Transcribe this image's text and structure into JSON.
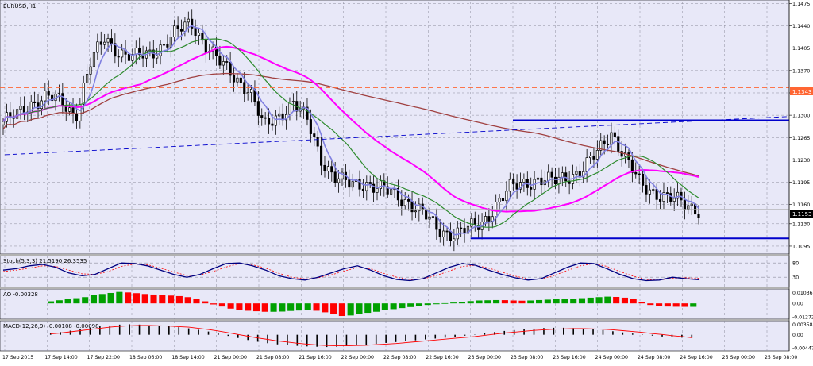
{
  "window": {
    "symbol_title": "EURUSD,H1"
  },
  "colors": {
    "background": "#e8e8f8",
    "grid": "#8c8c9c",
    "candle": "#000000",
    "ma_fast": "#8080e0",
    "ma_green": "#2e8b2e",
    "ma_magenta": "#ff00ff",
    "ma_slow": "#a04040",
    "trendline": "#0000cc",
    "current_price_line": "#aaaaaa",
    "orange_level": "#ff6633",
    "stoch_main": "#000080",
    "stoch_signal": "#ff0000",
    "ao_up": "#00a000",
    "ao_down": "#ff0000",
    "macd_hist": "#000000",
    "macd_signal": "#ff0000"
  },
  "chart_data": [
    {
      "type": "candlestick",
      "symbol": "EURUSD",
      "timeframe": "H1",
      "ylim": [
        1.1085,
        1.1478
      ],
      "y_ticks": [
        1.1475,
        1.144,
        1.1405,
        1.137,
        1.1335,
        1.13,
        1.1265,
        1.123,
        1.1195,
        1.116,
        1.113,
        1.1095
      ],
      "x_tick_labels": [
        "17 Sep 2015",
        "17 Sep 14:00",
        "17 Sep 22:00",
        "18 Sep 06:00",
        "18 Sep 14:00",
        "21 Sep 00:00",
        "21 Sep 08:00",
        "21 Sep 16:00",
        "22 Sep 00:00",
        "22 Sep 08:00",
        "22 Sep 16:00",
        "23 Sep 00:00",
        "23 Sep 08:00",
        "23 Sep 16:00",
        "24 Sep 00:00",
        "24 Sep 08:00",
        "24 Sep 16:00",
        "25 Sep 00:00",
        "25 Sep 08:00"
      ],
      "price_badges": [
        {
          "value": "1.1343",
          "color": "#ff6633"
        },
        {
          "value": "1.1153",
          "color": "#000000"
        }
      ],
      "close_waypoints": [
        1.129,
        1.13,
        1.132,
        1.133,
        1.132,
        1.13,
        1.138,
        1.142,
        1.14,
        1.139,
        1.1395,
        1.141,
        1.143,
        1.1445,
        1.141,
        1.138,
        1.136,
        1.134,
        1.128,
        1.13,
        1.132,
        1.129,
        1.123,
        1.12,
        1.119,
        1.1195,
        1.1185,
        1.1175,
        1.1165,
        1.1145,
        1.112,
        1.1115,
        1.112,
        1.113,
        1.116,
        1.1185,
        1.1195,
        1.12,
        1.1195,
        1.1205,
        1.1215,
        1.124,
        1.1275,
        1.123,
        1.119,
        1.118,
        1.117,
        1.116,
        1.1153
      ],
      "levels": {
        "orange_dashed": 1.1343,
        "current_price": 1.1153,
        "support": 1.1107
      },
      "trendlines": [
        {
          "style": "solid",
          "points": [
            [
              "23 Sep 00:00",
              1.1107
            ],
            [
              "25 Sep 08:00",
              1.1107
            ]
          ]
        },
        {
          "style": "solid",
          "points": [
            [
              "23 Sep 08:00",
              1.1292
            ],
            [
              "25 Sep 08:00",
              1.1292
            ]
          ]
        },
        {
          "style": "dashed",
          "points": [
            [
              "17 Sep 2015",
              1.1238
            ],
            [
              "25 Sep 08:00",
              1.1298
            ]
          ]
        }
      ],
      "grid": true
    },
    {
      "type": "line",
      "indicator": "Stoch",
      "label": "Stoch(5,3,3) 21.5190 26.3535",
      "y_ticks": [
        80,
        30
      ],
      "ylim": [
        0,
        100
      ],
      "main_values": [
        55,
        60,
        70,
        75,
        65,
        45,
        35,
        40,
        60,
        80,
        78,
        70,
        55,
        40,
        30,
        40,
        60,
        78,
        80,
        70,
        55,
        35,
        25,
        20,
        30,
        45,
        60,
        70,
        55,
        35,
        22,
        18,
        25,
        45,
        65,
        78,
        72,
        55,
        40,
        28,
        20,
        25,
        45,
        65,
        80,
        78,
        60,
        40,
        25,
        18,
        20,
        30,
        25,
        21.5
      ],
      "signal_values": [
        50,
        55,
        62,
        70,
        68,
        55,
        42,
        40,
        50,
        68,
        76,
        74,
        62,
        48,
        36,
        38,
        50,
        66,
        78,
        74,
        62,
        44,
        30,
        24,
        28,
        38,
        52,
        64,
        60,
        44,
        30,
        22,
        24,
        36,
        52,
        68,
        72,
        62,
        48,
        34,
        24,
        24,
        36,
        54,
        70,
        78,
        68,
        50,
        34,
        22,
        20,
        26,
        28,
        26.35
      ]
    },
    {
      "type": "bar",
      "indicator": "AO",
      "label": "AO -0.00328",
      "y_ticks": [
        "0.01036",
        "0.00",
        "-0.01272"
      ],
      "ylim": [
        -0.0135,
        0.0115
      ],
      "values": [
        0.002,
        0.003,
        0.004,
        0.005,
        0.006,
        0.008,
        0.009,
        0.01,
        0.011,
        0.0105,
        0.0098,
        0.009,
        0.0085,
        0.008,
        0.0075,
        0.007,
        0.006,
        0.004,
        0.002,
        -0.001,
        -0.003,
        -0.005,
        -0.006,
        -0.007,
        -0.0075,
        -0.008,
        -0.008,
        -0.0078,
        -0.0072,
        -0.0068,
        -0.0065,
        -0.007,
        -0.0085,
        -0.01,
        -0.012,
        -0.0115,
        -0.01,
        -0.009,
        -0.008,
        -0.0065,
        -0.0055,
        -0.0045,
        -0.0035,
        -0.0025,
        -0.0015,
        -0.0008,
        0.0002,
        0.0008,
        0.0015,
        0.0022,
        0.0028,
        0.003,
        0.0032,
        0.0031,
        0.0028,
        0.0026,
        0.0028,
        0.0032,
        0.0036,
        0.004,
        0.0043,
        0.0046,
        0.005,
        0.0055,
        0.006,
        0.0065,
        0.0062,
        0.0055,
        0.004,
        0.001,
        -0.0015,
        -0.0025,
        -0.003,
        -0.0032,
        -0.0033,
        -0.0032828
      ]
    },
    {
      "type": "bar",
      "indicator": "MACD",
      "label": "MACD(12,26,9) -0.00108 -0.00098",
      "y_ticks": [
        "0.00358",
        "0.00",
        "-0.00447"
      ],
      "ylim": [
        -0.005,
        0.004
      ],
      "hist_values": [
        0.0005,
        0.0009,
        0.0014,
        0.0019,
        0.0024,
        0.0029,
        0.0032,
        0.0035,
        0.0036,
        0.0035,
        0.0033,
        0.0031,
        0.0029,
        0.0026,
        0.0022,
        0.0017,
        0.0011,
        0.0004,
        -0.0004,
        -0.0011,
        -0.0018,
        -0.0024,
        -0.0029,
        -0.0033,
        -0.0036,
        -0.0038,
        -0.004,
        -0.0041,
        -0.0042,
        -0.0041,
        -0.0039,
        -0.0037,
        -0.0034,
        -0.0031,
        -0.0028,
        -0.0025,
        -0.0022,
        -0.0019,
        -0.0016,
        -0.0013,
        -0.001,
        -0.0007,
        -0.0003,
        0.0001,
        0.0005,
        0.0009,
        0.0013,
        0.0016,
        0.0019,
        0.0021,
        0.0023,
        0.0024,
        0.0024,
        0.0023,
        0.0021,
        0.0019,
        0.0016,
        0.0012,
        0.0008,
        0.0004,
        0.0001,
        -0.0003,
        -0.0006,
        -0.0008,
        -0.001,
        -0.00108
      ],
      "signal_values": [
        0.0003,
        0.0006,
        0.001,
        0.0014,
        0.0018,
        0.0022,
        0.0026,
        0.0029,
        0.0031,
        0.0032,
        0.0032,
        0.0031,
        0.003,
        0.0028,
        0.0026,
        0.0022,
        0.0018,
        0.0013,
        0.0007,
        0.0001,
        -0.0005,
        -0.0011,
        -0.0016,
        -0.0021,
        -0.0025,
        -0.0029,
        -0.0032,
        -0.0035,
        -0.0037,
        -0.0038,
        -0.0038,
        -0.0037,
        -0.0036,
        -0.0034,
        -0.0032,
        -0.003,
        -0.0027,
        -0.0024,
        -0.0021,
        -0.0018,
        -0.0015,
        -0.0012,
        -0.0009,
        -0.0006,
        -0.0002,
        0.0002,
        0.0006,
        0.0009,
        0.0012,
        0.0015,
        0.0017,
        0.0019,
        0.002,
        0.0021,
        0.0021,
        0.002,
        0.0019,
        0.0017,
        0.0014,
        0.0011,
        0.0008,
        0.0004,
        0.0001,
        -0.0003,
        -0.0006,
        -0.00098
      ]
    }
  ]
}
